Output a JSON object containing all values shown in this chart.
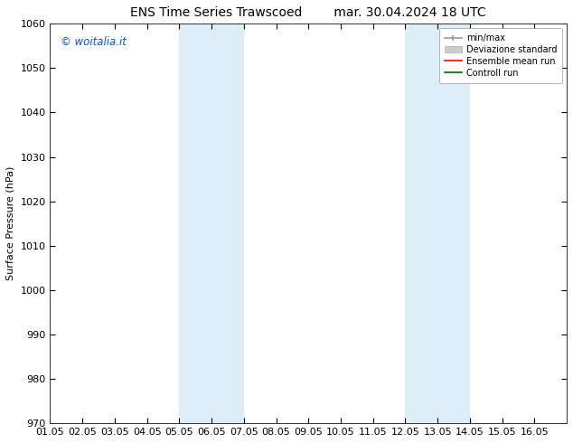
{
  "title_left": "ENS Time Series Trawscoed",
  "title_right": "mar. 30.04.2024 18 UTC",
  "ylabel": "Surface Pressure (hPa)",
  "xlim": [
    0,
    16
  ],
  "ylim": [
    970,
    1060
  ],
  "yticks": [
    970,
    980,
    990,
    1000,
    1010,
    1020,
    1030,
    1040,
    1050,
    1060
  ],
  "xtick_labels": [
    "01.05",
    "02.05",
    "03.05",
    "04.05",
    "05.05",
    "06.05",
    "07.05",
    "08.05",
    "09.05",
    "10.05",
    "11.05",
    "12.05",
    "13.05",
    "14.05",
    "15.05",
    "16.05"
  ],
  "shaded_regions": [
    {
      "xmin": 4.0,
      "xmax": 6.0,
      "color": "#ddeef8"
    },
    {
      "xmin": 11.0,
      "xmax": 13.0,
      "color": "#ddeef8"
    }
  ],
  "watermark_text": "© woitalia.it",
  "watermark_color": "#0055cc",
  "legend_labels": [
    "min/max",
    "Deviazione standard",
    "Ensemble mean run",
    "Controll run"
  ],
  "legend_colors": [
    "#aaaaaa",
    "#ccddee",
    "red",
    "green"
  ],
  "bg_color": "#ffffff",
  "title_fontsize": 10,
  "axis_label_fontsize": 8,
  "tick_fontsize": 8,
  "legend_fontsize": 7
}
